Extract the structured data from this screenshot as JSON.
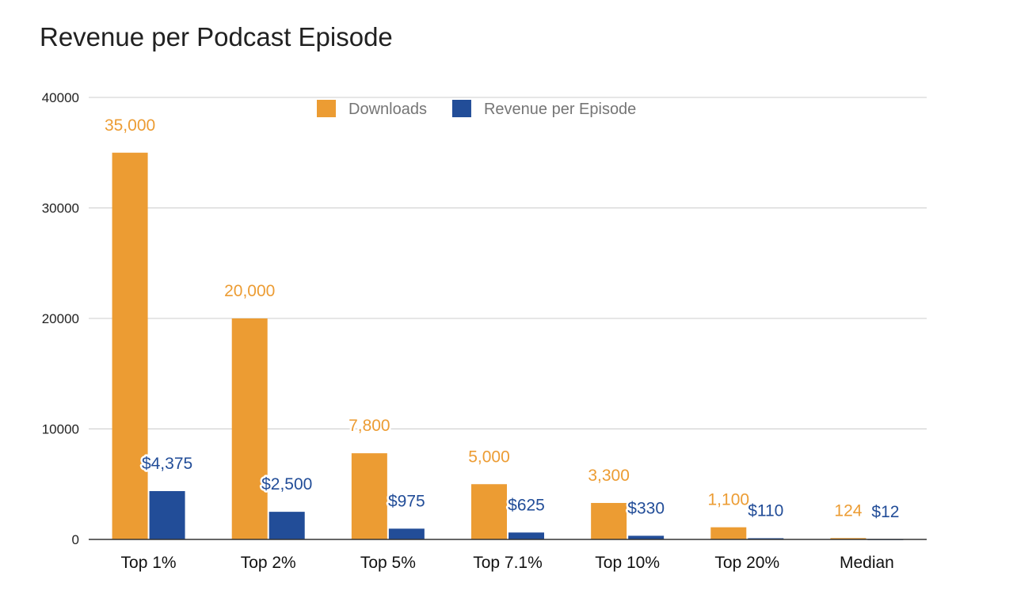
{
  "chart_data": {
    "type": "bar",
    "title": "Revenue per Podcast Episode",
    "xlabel": "",
    "ylabel": "",
    "ylim": [
      0,
      40000
    ],
    "yticks": [
      0,
      10000,
      20000,
      30000,
      40000
    ],
    "grid": true,
    "legend_position": "top-center",
    "categories": [
      "Top 1%",
      "Top 2%",
      "Top 5%",
      "Top 7.1%",
      "Top 10%",
      "Top 20%",
      "Median"
    ],
    "series": [
      {
        "name": "Downloads",
        "color": "#EC9C33",
        "values": [
          35000,
          20000,
          7800,
          5000,
          3300,
          1100,
          124
        ],
        "labels": [
          "35,000",
          "20,000",
          "7,800",
          "5,000",
          "3,300",
          "1,100",
          "124"
        ]
      },
      {
        "name": "Revenue per Episode",
        "color": "#224D98",
        "values": [
          4375,
          2500,
          975,
          625,
          330,
          110,
          12
        ],
        "labels": [
          "$4,375",
          "$2,500",
          "$975",
          "$625",
          "$330",
          "$110",
          "$12"
        ]
      }
    ]
  }
}
